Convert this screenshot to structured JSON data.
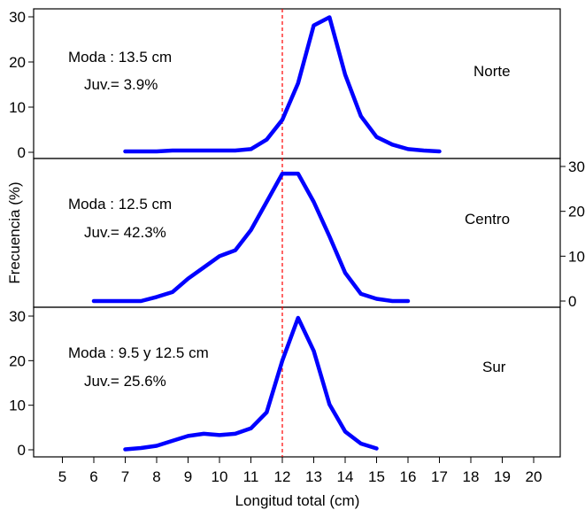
{
  "chart_data": {
    "type": "line",
    "xlabel": "Longitud total (cm)",
    "ylabel": "Frecuencia (%)",
    "xlim": [
      4.5,
      20.7
    ],
    "x_ticks": [
      5,
      6,
      7,
      8,
      9,
      10,
      11,
      12,
      13,
      14,
      15,
      16,
      17,
      18,
      19,
      20
    ],
    "reference_line_x": 12,
    "line_color": "#0000ff",
    "reference_line_color": "#ff0000",
    "panels": [
      {
        "name": "Norte",
        "annotation_lines": [
          "Moda : 13.5 cm",
          "Juv.= 3.9%"
        ],
        "ylim": [
          0,
          30
        ],
        "y_ticks": [
          0,
          10,
          20,
          30
        ],
        "y_axis_side": "left",
        "x": [
          7,
          7.5,
          8,
          8.5,
          9,
          9.5,
          10,
          10.5,
          11,
          11.5,
          12,
          12.5,
          13,
          13.5,
          14,
          14.5,
          15,
          15.5,
          16,
          16.5,
          17
        ],
        "values": [
          0.2,
          0.2,
          0.2,
          0.4,
          0.4,
          0.4,
          0.4,
          0.4,
          0.7,
          2.8,
          7.2,
          15.3,
          28.1,
          29.9,
          17.2,
          8,
          3.4,
          1.7,
          0.7,
          0.4,
          0.2
        ]
      },
      {
        "name": "Centro",
        "annotation_lines": [
          "Moda : 12.5 cm",
          "Juv.= 42.3%"
        ],
        "ylim": [
          0,
          30
        ],
        "y_ticks": [
          0,
          10,
          20,
          30
        ],
        "y_axis_side": "right",
        "x": [
          6,
          6.5,
          7,
          7.5,
          8,
          8.5,
          9,
          9.5,
          10,
          10.5,
          11,
          11.5,
          12,
          12.5,
          13,
          13.5,
          14,
          14.5,
          15,
          15.5,
          16
        ],
        "values": [
          0,
          0,
          0,
          0,
          0.9,
          2,
          5,
          7.5,
          10,
          11.3,
          15.8,
          22.1,
          28.4,
          28.4,
          22.1,
          14.4,
          6.3,
          1.6,
          0.5,
          0,
          0
        ]
      },
      {
        "name": "Sur",
        "annotation_lines": [
          "Moda : 9.5 y 12.5 cm",
          "Juv.= 25.6%"
        ],
        "ylim": [
          0,
          30
        ],
        "y_ticks": [
          0,
          10,
          20,
          30
        ],
        "y_axis_side": "left",
        "x": [
          7,
          7.5,
          8,
          8.5,
          9,
          9.5,
          10,
          10.5,
          11,
          11.5,
          12,
          12.5,
          13,
          13.5,
          14,
          14.5,
          15
        ],
        "values": [
          0.1,
          0.4,
          0.9,
          2,
          3.1,
          3.6,
          3.3,
          3.6,
          4.8,
          8.4,
          20,
          29.6,
          22.2,
          10.2,
          4.1,
          1.4,
          0.3
        ]
      }
    ]
  }
}
